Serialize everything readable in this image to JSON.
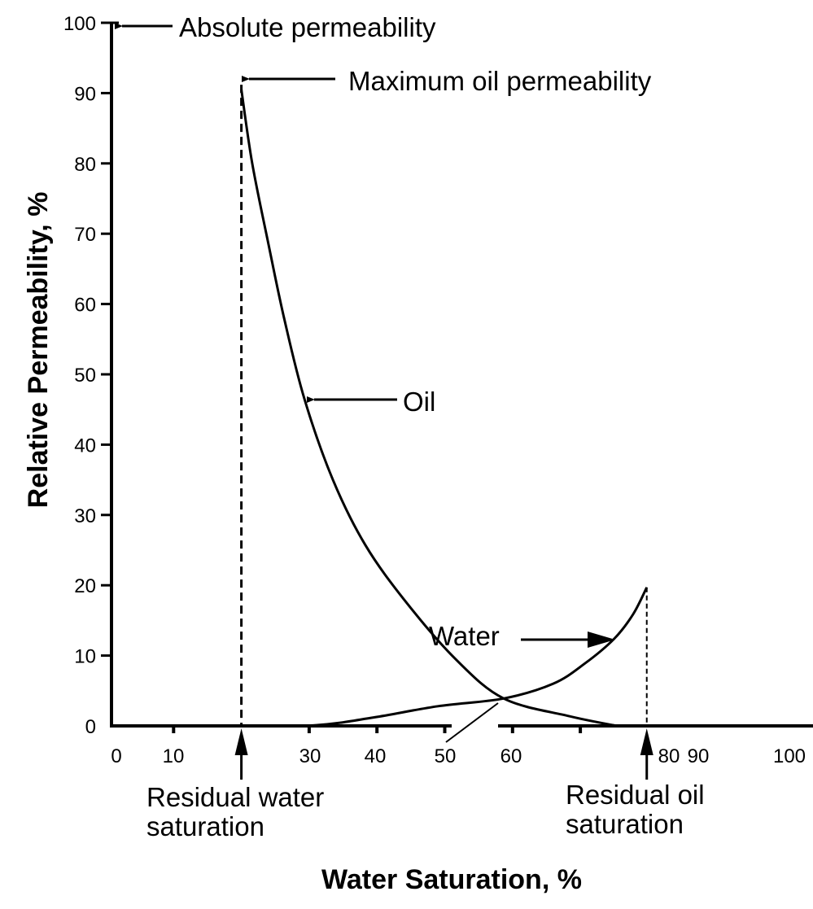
{
  "chart_data": {
    "type": "line",
    "xlabel": "Water Saturation, %",
    "ylabel": "Relative Permeability, %",
    "xlim": [
      0,
      100
    ],
    "ylim": [
      0,
      100
    ],
    "grid": false,
    "x_tick_labels": [
      "0",
      "10",
      "30",
      "40",
      "50",
      "60",
      "80",
      "90",
      "100"
    ],
    "y_tick_labels": [
      "0",
      "10",
      "20",
      "30",
      "40",
      "50",
      "60",
      "70",
      "80",
      "90",
      "100"
    ],
    "series": [
      {
        "name": "Oil",
        "x": [
          20,
          21.6,
          24,
          26.3,
          29.3,
          33.5,
          38.3,
          44.3,
          51.6,
          58.7,
          68.3,
          75.4
        ],
        "y": [
          90.5,
          80,
          68.5,
          58,
          46.5,
          35,
          25.7,
          17.6,
          9.5,
          3.9,
          1.4,
          0
        ]
      },
      {
        "name": "Water",
        "x": [
          20,
          31,
          39.5,
          49,
          58.7,
          66,
          70.7,
          75,
          77.8,
          79.8
        ],
        "y": [
          0,
          0.1,
          1.2,
          2.8,
          3.9,
          6,
          8.9,
          12.4,
          15.9,
          19.7
        ]
      }
    ],
    "annotations": {
      "absolute": "Absolute permeability",
      "max_oil": "Maximum oil permeability",
      "oil": "Oil",
      "water": "Water",
      "residual_water": [
        "Residual water",
        "saturation"
      ],
      "residual_oil": [
        "Residual oil",
        "saturation"
      ]
    },
    "residual_water_saturation": 20,
    "residual_oil_line_x": 79.8
  }
}
